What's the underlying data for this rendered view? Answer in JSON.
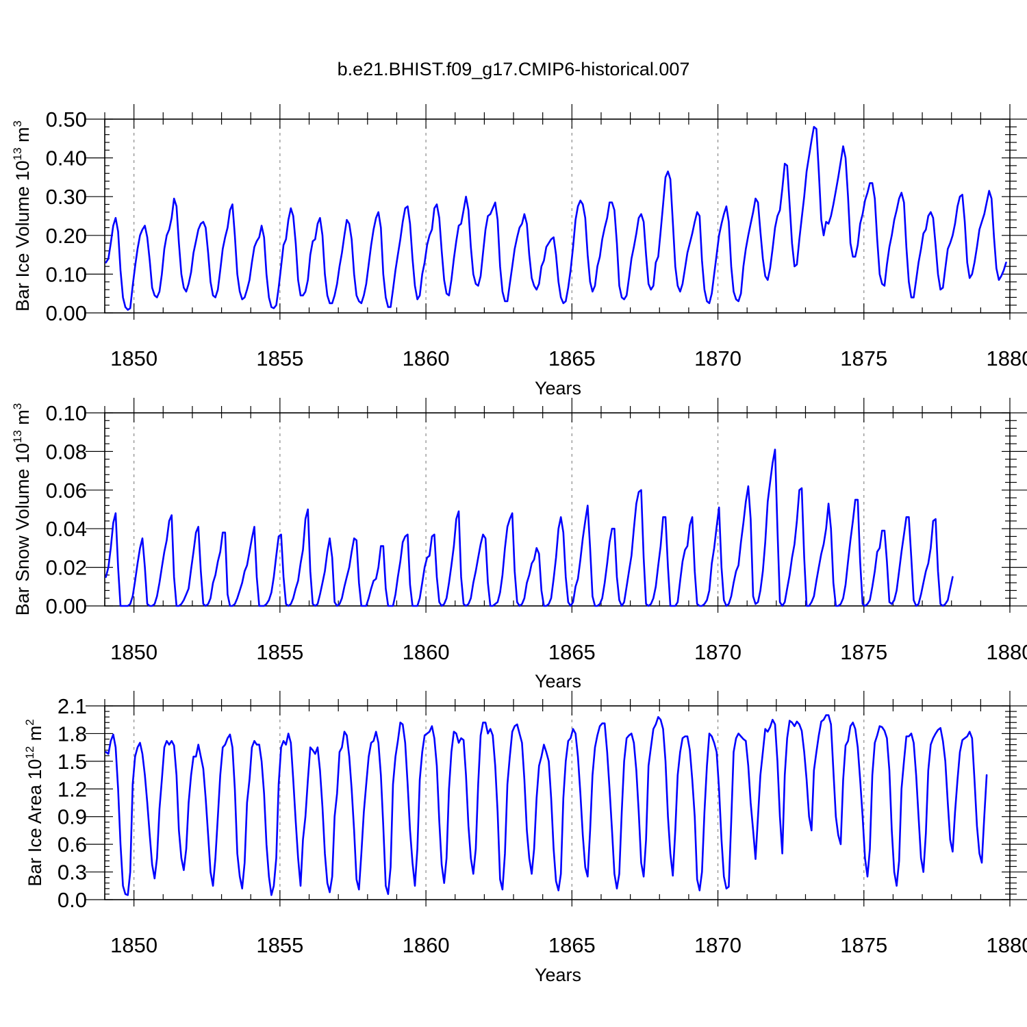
{
  "title": "b.e21.BHIST.f09_g17.CMIP6-historical.007",
  "colors": {
    "line": "#0000ff",
    "axis": "#000000",
    "grid": "#888888"
  },
  "chart_data": [
    {
      "type": "line",
      "name": "ice-volume",
      "ylabel": "Bar Ice Volume 10",
      "ylabel_exp": "13",
      "ylabel_unit": "m",
      "ylabel_unit_exp": "3",
      "xlabel": "Years",
      "xlim": [
        1849,
        1880
      ],
      "ylim": [
        0,
        0.5
      ],
      "xticks": [
        1850,
        1855,
        1860,
        1865,
        1870,
        1875,
        1880
      ],
      "xtick_labels": [
        "1850",
        "1855",
        "1860",
        "1865",
        "1870",
        "1875",
        "1880"
      ],
      "yticks": [
        0,
        0.1,
        0.2,
        0.3,
        0.4,
        0.5
      ],
      "ytick_labels": [
        "0.00",
        "0.10",
        "0.20",
        "0.30",
        "0.40",
        "0.50"
      ],
      "grid_x": true,
      "x_start": 1849.04,
      "x_step": 0.08333,
      "values": [
        0.13,
        0.14,
        0.18,
        0.225,
        0.245,
        0.21,
        0.11,
        0.04,
        0.015,
        0.008,
        0.012,
        0.07,
        0.12,
        0.165,
        0.2,
        0.215,
        0.225,
        0.195,
        0.135,
        0.065,
        0.045,
        0.04,
        0.055,
        0.1,
        0.165,
        0.2,
        0.215,
        0.245,
        0.295,
        0.275,
        0.18,
        0.1,
        0.065,
        0.055,
        0.075,
        0.105,
        0.155,
        0.185,
        0.215,
        0.23,
        0.235,
        0.22,
        0.155,
        0.08,
        0.045,
        0.04,
        0.06,
        0.11,
        0.165,
        0.195,
        0.22,
        0.265,
        0.28,
        0.2,
        0.1,
        0.055,
        0.035,
        0.04,
        0.06,
        0.085,
        0.13,
        0.17,
        0.185,
        0.195,
        0.225,
        0.195,
        0.1,
        0.04,
        0.015,
        0.012,
        0.02,
        0.065,
        0.12,
        0.175,
        0.19,
        0.24,
        0.27,
        0.25,
        0.18,
        0.085,
        0.045,
        0.045,
        0.055,
        0.085,
        0.15,
        0.185,
        0.19,
        0.23,
        0.245,
        0.2,
        0.1,
        0.045,
        0.025,
        0.025,
        0.045,
        0.075,
        0.12,
        0.155,
        0.2,
        0.24,
        0.23,
        0.19,
        0.1,
        0.045,
        0.03,
        0.025,
        0.045,
        0.075,
        0.125,
        0.175,
        0.215,
        0.245,
        0.26,
        0.22,
        0.1,
        0.04,
        0.015,
        0.015,
        0.06,
        0.11,
        0.15,
        0.19,
        0.235,
        0.27,
        0.275,
        0.23,
        0.14,
        0.07,
        0.035,
        0.045,
        0.1,
        0.13,
        0.175,
        0.2,
        0.215,
        0.27,
        0.28,
        0.245,
        0.16,
        0.085,
        0.05,
        0.045,
        0.085,
        0.14,
        0.185,
        0.225,
        0.23,
        0.265,
        0.3,
        0.265,
        0.17,
        0.1,
        0.075,
        0.07,
        0.095,
        0.155,
        0.215,
        0.25,
        0.255,
        0.27,
        0.285,
        0.24,
        0.12,
        0.055,
        0.03,
        0.03,
        0.075,
        0.12,
        0.165,
        0.195,
        0.22,
        0.23,
        0.255,
        0.23,
        0.15,
        0.09,
        0.07,
        0.06,
        0.075,
        0.12,
        0.135,
        0.17,
        0.18,
        0.19,
        0.195,
        0.15,
        0.08,
        0.04,
        0.025,
        0.03,
        0.065,
        0.11,
        0.17,
        0.24,
        0.275,
        0.29,
        0.28,
        0.245,
        0.15,
        0.08,
        0.055,
        0.07,
        0.12,
        0.145,
        0.19,
        0.22,
        0.245,
        0.285,
        0.285,
        0.265,
        0.18,
        0.07,
        0.04,
        0.035,
        0.045,
        0.09,
        0.14,
        0.17,
        0.205,
        0.245,
        0.255,
        0.235,
        0.15,
        0.075,
        0.06,
        0.07,
        0.13,
        0.145,
        0.21,
        0.28,
        0.35,
        0.365,
        0.345,
        0.235,
        0.12,
        0.07,
        0.055,
        0.075,
        0.115,
        0.155,
        0.18,
        0.205,
        0.235,
        0.26,
        0.25,
        0.135,
        0.06,
        0.03,
        0.025,
        0.05,
        0.1,
        0.15,
        0.2,
        0.23,
        0.255,
        0.275,
        0.235,
        0.12,
        0.055,
        0.035,
        0.03,
        0.05,
        0.12,
        0.165,
        0.2,
        0.23,
        0.26,
        0.295,
        0.285,
        0.21,
        0.14,
        0.095,
        0.085,
        0.115,
        0.165,
        0.22,
        0.25,
        0.265,
        0.32,
        0.385,
        0.38,
        0.28,
        0.18,
        0.12,
        0.125,
        0.19,
        0.245,
        0.3,
        0.365,
        0.405,
        0.445,
        0.48,
        0.475,
        0.365,
        0.24,
        0.2,
        0.235,
        0.23,
        0.25,
        0.28,
        0.315,
        0.35,
        0.39,
        0.43,
        0.4,
        0.3,
        0.18,
        0.145,
        0.145,
        0.175,
        0.23,
        0.255,
        0.29,
        0.31,
        0.335,
        0.335,
        0.295,
        0.19,
        0.1,
        0.075,
        0.07,
        0.125,
        0.17,
        0.2,
        0.24,
        0.265,
        0.295,
        0.31,
        0.285,
        0.17,
        0.08,
        0.04,
        0.04,
        0.085,
        0.13,
        0.165,
        0.205,
        0.215,
        0.25,
        0.26,
        0.245,
        0.175,
        0.1,
        0.06,
        0.065,
        0.115,
        0.165,
        0.18,
        0.2,
        0.23,
        0.275,
        0.3,
        0.305,
        0.235,
        0.13,
        0.09,
        0.1,
        0.13,
        0.17,
        0.215,
        0.235,
        0.255,
        0.285,
        0.315,
        0.295,
        0.195,
        0.115,
        0.085,
        0.095,
        0.11,
        0.13
      ]
    },
    {
      "type": "line",
      "name": "snow-volume",
      "ylabel": "Bar Snow Volume 10",
      "ylabel_exp": "13",
      "ylabel_unit": "m",
      "ylabel_unit_exp": "3",
      "xlabel": "Years",
      "xlim": [
        1849,
        1880
      ],
      "ylim": [
        0,
        0.1
      ],
      "xticks": [
        1850,
        1855,
        1860,
        1865,
        1870,
        1875,
        1880
      ],
      "xtick_labels": [
        "1850",
        "1855",
        "1860",
        "1865",
        "1870",
        "1875",
        "1880"
      ],
      "yticks": [
        0,
        0.02,
        0.04,
        0.06,
        0.08,
        0.1
      ],
      "ytick_labels": [
        "0.00",
        "0.02",
        "0.04",
        "0.06",
        "0.08",
        "0.10"
      ],
      "grid_x": true,
      "x_start": 1849.04,
      "x_step": 0.08333,
      "values": [
        0.015,
        0.02,
        0.03,
        0.043,
        0.048,
        0.02,
        0,
        0,
        0,
        0,
        0.001,
        0.005,
        0.013,
        0.022,
        0.03,
        0.035,
        0.02,
        0.001,
        0,
        0,
        0.001,
        0.005,
        0.012,
        0.02,
        0.028,
        0.034,
        0.044,
        0.047,
        0.015,
        0,
        0,
        0.001,
        0.003,
        0.006,
        0.009,
        0.019,
        0.028,
        0.038,
        0.041,
        0.018,
        0.001,
        0,
        0.001,
        0.004,
        0.012,
        0.016,
        0.023,
        0.028,
        0.038,
        0.038,
        0.006,
        0,
        0,
        0.001,
        0.004,
        0.008,
        0.012,
        0.018,
        0.021,
        0.028,
        0.035,
        0.041,
        0.015,
        0,
        0,
        0,
        0.001,
        0.003,
        0.007,
        0.015,
        0.026,
        0.036,
        0.037,
        0.015,
        0.001,
        0,
        0.001,
        0.004,
        0.009,
        0.013,
        0.022,
        0.029,
        0.045,
        0.05,
        0.018,
        0.001,
        0,
        0.001,
        0.006,
        0.012,
        0.018,
        0.028,
        0.035,
        0.025,
        0.002,
        0,
        0.001,
        0.004,
        0.01,
        0.015,
        0.02,
        0.028,
        0.035,
        0.034,
        0.012,
        0,
        0,
        0,
        0.004,
        0.009,
        0.013,
        0.014,
        0.02,
        0.031,
        0.031,
        0.009,
        0,
        0,
        0,
        0.006,
        0.015,
        0.023,
        0.033,
        0.036,
        0.037,
        0.011,
        0,
        0,
        0,
        0.004,
        0.012,
        0.02,
        0.025,
        0.026,
        0.036,
        0.037,
        0.015,
        0.002,
        0,
        0.001,
        0.004,
        0.012,
        0.021,
        0.031,
        0.045,
        0.049,
        0.015,
        0.001,
        0,
        0.001,
        0.004,
        0.012,
        0.018,
        0.025,
        0.032,
        0.037,
        0.035,
        0.012,
        0,
        0,
        0.001,
        0.002,
        0.007,
        0.016,
        0.03,
        0.041,
        0.045,
        0.048,
        0.018,
        0.002,
        0,
        0.001,
        0.004,
        0.012,
        0.016,
        0.022,
        0.024,
        0.03,
        0.027,
        0.008,
        0,
        0,
        0.001,
        0.004,
        0.014,
        0.025,
        0.04,
        0.046,
        0.038,
        0.015,
        0.002,
        0,
        0.002,
        0.01,
        0.014,
        0.024,
        0.035,
        0.044,
        0.052,
        0.03,
        0.005,
        0,
        0,
        0.001,
        0.004,
        0.012,
        0.022,
        0.033,
        0.04,
        0.04,
        0.015,
        0.003,
        0,
        0.002,
        0.01,
        0.018,
        0.026,
        0.04,
        0.053,
        0.059,
        0.06,
        0.025,
        0.001,
        0,
        0.001,
        0.004,
        0.01,
        0.021,
        0.031,
        0.046,
        0.046,
        0.02,
        0,
        0,
        0,
        0.002,
        0.013,
        0.023,
        0.029,
        0.031,
        0.042,
        0.046,
        0.018,
        0.001,
        0,
        0,
        0.001,
        0.003,
        0.008,
        0.022,
        0.03,
        0.041,
        0.051,
        0.02,
        0.003,
        0,
        0.001,
        0.005,
        0.012,
        0.018,
        0.021,
        0.033,
        0.043,
        0.054,
        0.062,
        0.045,
        0.005,
        0.001,
        0.002,
        0.008,
        0.018,
        0.033,
        0.054,
        0.064,
        0.074,
        0.081,
        0.04,
        0.002,
        0,
        0.002,
        0.009,
        0.016,
        0.025,
        0.032,
        0.044,
        0.06,
        0.061,
        0.025,
        0,
        0,
        0.002,
        0.005,
        0.013,
        0.02,
        0.027,
        0.032,
        0.04,
        0.053,
        0.04,
        0.012,
        0,
        0,
        0.001,
        0.004,
        0.011,
        0.023,
        0.034,
        0.044,
        0.055,
        0.055,
        0.023,
        0.001,
        0,
        0.001,
        0.003,
        0.01,
        0.018,
        0.028,
        0.03,
        0.039,
        0.039,
        0.023,
        0.002,
        0.001,
        0.003,
        0.008,
        0.018,
        0.028,
        0.037,
        0.046,
        0.046,
        0.025,
        0.003,
        0,
        0.001,
        0.006,
        0.012,
        0.018,
        0.022,
        0.03,
        0.044,
        0.045,
        0.018,
        0.001,
        0,
        0.001,
        0.003,
        0.009,
        0.015
      ]
    },
    {
      "type": "line",
      "name": "ice-area",
      "ylabel": "Bar Ice Area 10",
      "ylabel_exp": "12",
      "ylabel_unit": "m",
      "ylabel_unit_exp": "2",
      "xlabel": "Years",
      "xlim": [
        1849,
        1880
      ],
      "ylim": [
        0,
        2.1
      ],
      "xticks": [
        1850,
        1855,
        1860,
        1865,
        1870,
        1875,
        1880
      ],
      "xtick_labels": [
        "1850",
        "1855",
        "1860",
        "1865",
        "1870",
        "1875",
        "1880"
      ],
      "yticks": [
        0,
        0.3,
        0.6,
        0.9,
        1.2,
        1.5,
        1.8,
        2.1
      ],
      "ytick_labels": [
        "0.0",
        "0.3",
        "0.6",
        "0.9",
        "1.2",
        "1.5",
        "1.8",
        "2.1"
      ],
      "grid_x": true,
      "x_start": 1849.04,
      "x_step": 0.08333,
      "values": [
        1.6,
        1.58,
        1.72,
        1.79,
        1.65,
        1.2,
        0.6,
        0.15,
        0.06,
        0.05,
        0.3,
        1.25,
        1.55,
        1.65,
        1.7,
        1.58,
        1.35,
        1.05,
        0.7,
        0.38,
        0.23,
        0.45,
        0.98,
        1.3,
        1.65,
        1.72,
        1.68,
        1.72,
        1.67,
        1.35,
        0.75,
        0.45,
        0.32,
        0.55,
        1.05,
        1.35,
        1.55,
        1.55,
        1.68,
        1.55,
        1.42,
        1.1,
        0.7,
        0.3,
        0.15,
        0.45,
        0.9,
        1.35,
        1.65,
        1.68,
        1.75,
        1.79,
        1.65,
        1.2,
        0.5,
        0.25,
        0.12,
        0.4,
        1.05,
        1.3,
        1.65,
        1.72,
        1.68,
        1.68,
        1.5,
        1.15,
        0.6,
        0.25,
        0.05,
        0.15,
        0.45,
        1.25,
        1.65,
        1.72,
        1.68,
        1.8,
        1.7,
        1.3,
        0.85,
        0.45,
        0.15,
        0.65,
        0.9,
        1.3,
        1.65,
        1.62,
        1.58,
        1.65,
        1.4,
        1.0,
        0.5,
        0.18,
        0.08,
        0.25,
        0.9,
        1.15,
        1.6,
        1.65,
        1.82,
        1.78,
        1.55,
        1.2,
        0.75,
        0.22,
        0.11,
        0.5,
        0.95,
        1.25,
        1.55,
        1.7,
        1.72,
        1.82,
        1.7,
        1.35,
        0.8,
        0.15,
        0.06,
        0.35,
        1.25,
        1.55,
        1.72,
        1.92,
        1.9,
        1.7,
        1.25,
        0.75,
        0.4,
        0.15,
        0.55,
        1.3,
        1.6,
        1.78,
        1.8,
        1.82,
        1.88,
        1.75,
        1.45,
        0.85,
        0.38,
        0.18,
        0.45,
        1.2,
        1.6,
        1.82,
        1.8,
        1.7,
        1.75,
        1.73,
        1.35,
        0.8,
        0.45,
        0.28,
        0.55,
        1.25,
        1.78,
        1.92,
        1.92,
        1.8,
        1.85,
        1.78,
        1.45,
        0.95,
        0.22,
        0.11,
        0.5,
        1.25,
        1.55,
        1.82,
        1.88,
        1.9,
        1.8,
        1.7,
        1.3,
        0.75,
        0.45,
        0.28,
        0.55,
        1.1,
        1.45,
        1.55,
        1.68,
        1.6,
        1.5,
        1.1,
        0.55,
        0.2,
        0.1,
        0.28,
        1.1,
        1.5,
        1.72,
        1.75,
        1.85,
        1.8,
        1.55,
        1.15,
        0.7,
        0.35,
        0.25,
        0.75,
        1.35,
        1.65,
        1.78,
        1.88,
        1.91,
        1.91,
        1.6,
        1.2,
        0.75,
        0.28,
        0.12,
        0.28,
        0.95,
        1.5,
        1.75,
        1.78,
        1.8,
        1.7,
        1.4,
        0.95,
        0.4,
        0.25,
        0.65,
        1.45,
        1.65,
        1.85,
        1.9,
        1.98,
        1.95,
        1.85,
        1.5,
        0.9,
        0.5,
        0.26,
        0.75,
        1.35,
        1.6,
        1.75,
        1.77,
        1.77,
        1.62,
        1.3,
        0.9,
        0.22,
        0.1,
        0.3,
        0.95,
        1.45,
        1.8,
        1.77,
        1.7,
        1.6,
        1.2,
        0.65,
        0.25,
        0.12,
        0.14,
        0.85,
        1.6,
        1.75,
        1.8,
        1.77,
        1.74,
        1.72,
        1.45,
        1.05,
        0.75,
        0.44,
        0.9,
        1.35,
        1.6,
        1.85,
        1.82,
        1.87,
        1.95,
        1.9,
        1.5,
        0.9,
        0.5,
        1.35,
        1.75,
        1.94,
        1.92,
        1.88,
        1.93,
        1.9,
        1.83,
        1.6,
        1.3,
        0.9,
        0.75,
        1.4,
        1.6,
        1.78,
        1.93,
        1.95,
        2.0,
        2.0,
        1.9,
        1.4,
        0.9,
        0.7,
        0.6,
        1.3,
        1.67,
        1.72,
        1.88,
        1.92,
        1.85,
        1.65,
        1.3,
        0.9,
        0.45,
        0.25,
        0.55,
        1.35,
        1.7,
        1.78,
        1.88,
        1.87,
        1.83,
        1.75,
        1.4,
        0.75,
        0.3,
        0.15,
        0.42,
        1.2,
        1.5,
        1.77,
        1.77,
        1.8,
        1.7,
        1.35,
        0.9,
        0.45,
        0.3,
        0.72,
        1.4,
        1.68,
        1.75,
        1.8,
        1.84,
        1.86,
        1.72,
        1.5,
        1.05,
        0.65,
        0.52,
        0.95,
        1.3,
        1.6,
        1.73,
        1.75,
        1.77,
        1.82,
        1.75,
        1.3,
        0.8,
        0.5,
        0.4,
        0.9,
        1.35
      ]
    }
  ]
}
